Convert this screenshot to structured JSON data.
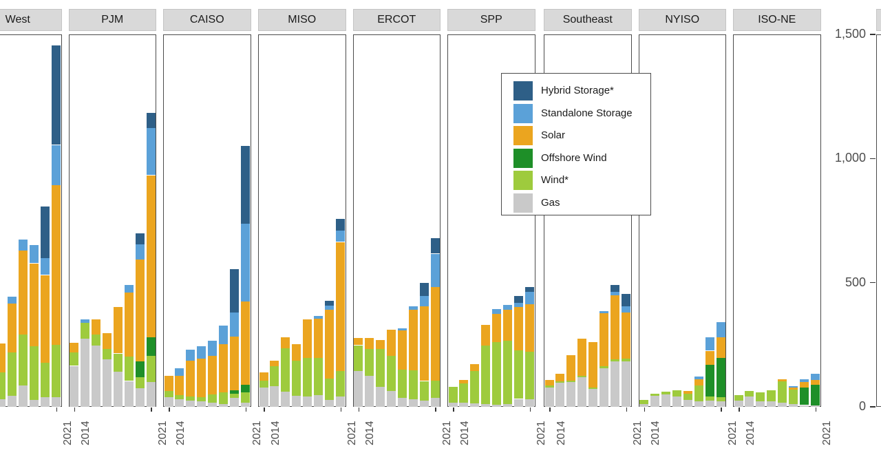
{
  "chart_data": {
    "type": "bar",
    "stacked": true,
    "title": "",
    "xlabel": "",
    "ylabel": "",
    "ylim": [
      0,
      1500
    ],
    "grid": false,
    "legend_position": "overlay-center",
    "x_tick_labels": [
      "2014",
      "2021"
    ],
    "y_axis": {
      "labels": [
        "1,500",
        "1,000",
        "500",
        "0"
      ],
      "values": [
        1500,
        1000,
        500,
        0
      ]
    },
    "series_meta": [
      {
        "key": "gas",
        "label": "Gas",
        "color": "#c9c9c9"
      },
      {
        "key": "wind",
        "label": "Wind*",
        "color": "#9ecb3d"
      },
      {
        "key": "offshore_wind",
        "label": "Offshore Wind",
        "color": "#1e8f28"
      },
      {
        "key": "solar",
        "label": "Solar",
        "color": "#eba51f"
      },
      {
        "key": "standalone_storage",
        "label": "Standalone Storage",
        "color": "#5ba1d8"
      },
      {
        "key": "hybrid_storage",
        "label": "Hybrid Storage*",
        "color": "#2e5f87"
      }
    ],
    "panels": [
      {
        "id": "west",
        "name": "West",
        "years": [
          2016,
          2017,
          2018,
          2019,
          2020,
          2021
        ],
        "values": {
          "gas": [
            32,
            44,
            85,
            28,
            39,
            39
          ],
          "wind": [
            108,
            175,
            205,
            217,
            138,
            211
          ],
          "offshore_wind": [
            0,
            0,
            0,
            0,
            0,
            0
          ],
          "solar": [
            115,
            198,
            339,
            333,
            354,
            642
          ],
          "standalone_storage": [
            0,
            26,
            44,
            74,
            69,
            163
          ],
          "hybrid_storage": [
            0,
            0,
            0,
            0,
            207,
            400
          ]
        }
      },
      {
        "id": "pjm",
        "name": "PJM",
        "years": [
          2014,
          2015,
          2016,
          2017,
          2018,
          2019,
          2020,
          2021
        ],
        "values": {
          "gas": [
            165,
            274,
            248,
            191,
            141,
            104,
            74,
            101
          ],
          "wind": [
            55,
            64,
            44,
            41,
            74,
            98,
            46,
            104
          ],
          "offshore_wind": [
            0,
            0,
            0,
            0,
            0,
            0,
            63,
            74
          ],
          "solar": [
            37,
            0,
            60,
            66,
            186,
            258,
            411,
            654
          ],
          "standalone_storage": [
            0,
            14,
            0,
            0,
            0,
            32,
            60,
            191
          ],
          "hybrid_storage": [
            0,
            0,
            0,
            0,
            0,
            0,
            46,
            60
          ]
        }
      },
      {
        "id": "caiso",
        "name": "CAISO",
        "years": [
          2014,
          2015,
          2016,
          2017,
          2018,
          2019,
          2020,
          2021
        ],
        "values": {
          "gas": [
            38,
            30,
            26,
            21,
            17,
            12,
            35,
            17
          ],
          "wind": [
            25,
            18,
            16,
            18,
            32,
            46,
            18,
            41
          ],
          "offshore_wind": [
            0,
            0,
            0,
            0,
            0,
            0,
            14,
            30
          ],
          "solar": [
            61,
            78,
            143,
            156,
            156,
            195,
            216,
            337
          ],
          "standalone_storage": [
            0,
            29,
            44,
            50,
            60,
            73,
            97,
            313
          ],
          "hybrid_storage": [
            0,
            0,
            0,
            0,
            0,
            0,
            175,
            314
          ]
        }
      },
      {
        "id": "miso",
        "name": "MISO",
        "years": [
          2014,
          2015,
          2016,
          2017,
          2018,
          2019,
          2020,
          2021
        ],
        "values": {
          "gas": [
            78,
            84,
            60,
            44,
            41,
            46,
            28,
            41
          ],
          "wind": [
            28,
            80,
            175,
            143,
            156,
            152,
            87,
            104
          ],
          "offshore_wind": [
            0,
            0,
            0,
            0,
            0,
            0,
            0,
            0
          ],
          "solar": [
            33,
            23,
            44,
            66,
            156,
            156,
            276,
            519
          ],
          "standalone_storage": [
            0,
            0,
            0,
            0,
            0,
            12,
            17,
            46
          ],
          "hybrid_storage": [
            0,
            0,
            0,
            0,
            0,
            0,
            20,
            46
          ]
        }
      },
      {
        "id": "ercot",
        "name": "ERCOT",
        "years": [
          2014,
          2015,
          2016,
          2017,
          2018,
          2019,
          2020,
          2021
        ],
        "values": {
          "gas": [
            145,
            124,
            81,
            63,
            37,
            30,
            26,
            37
          ],
          "wind": [
            103,
            110,
            152,
            142,
            113,
            118,
            78,
            69
          ],
          "offshore_wind": [
            0,
            0,
            0,
            0,
            0,
            0,
            0,
            0
          ],
          "solar": [
            30,
            44,
            35,
            106,
            158,
            243,
            301,
            377
          ],
          "standalone_storage": [
            0,
            0,
            0,
            0,
            9,
            14,
            41,
            134
          ],
          "hybrid_storage": [
            0,
            0,
            0,
            0,
            0,
            0,
            53,
            63
          ]
        }
      },
      {
        "id": "spp",
        "name": "SPP",
        "years": [
          2014,
          2015,
          2016,
          2017,
          2018,
          2019,
          2020,
          2021
        ],
        "values": {
          "gas": [
            17,
            17,
            14,
            12,
            9,
            10,
            32,
            30
          ],
          "wind": [
            64,
            78,
            129,
            234,
            253,
            257,
            196,
            193
          ],
          "offshore_wind": [
            0,
            0,
            0,
            0,
            0,
            0,
            0,
            0
          ],
          "solar": [
            0,
            14,
            28,
            83,
            113,
            123,
            175,
            191
          ],
          "standalone_storage": [
            0,
            0,
            0,
            0,
            18,
            21,
            16,
            48
          ],
          "hybrid_storage": [
            0,
            0,
            0,
            0,
            0,
            0,
            28,
            20
          ]
        }
      },
      {
        "id": "southeast",
        "name": "Southeast",
        "years": [
          2014,
          2015,
          2016,
          2017,
          2018,
          2019,
          2020,
          2021
        ],
        "values": {
          "gas": [
            78,
            97,
            99,
            118,
            72,
            156,
            182,
            184
          ],
          "wind": [
            7,
            7,
            6,
            6,
            6,
            7,
            9,
            9
          ],
          "offshore_wind": [
            0,
            0,
            0,
            0,
            0,
            0,
            0,
            0
          ],
          "solar": [
            23,
            29,
            104,
            150,
            182,
            214,
            258,
            188
          ],
          "standalone_storage": [
            0,
            0,
            0,
            0,
            0,
            8,
            15,
            24
          ],
          "hybrid_storage": [
            0,
            0,
            0,
            0,
            0,
            0,
            28,
            50
          ]
        }
      },
      {
        "id": "nyiso",
        "name": "NYISO",
        "years": [
          2014,
          2015,
          2016,
          2017,
          2018,
          2019,
          2020,
          2021
        ],
        "values": {
          "gas": [
            12,
            44,
            49,
            41,
            28,
            23,
            26,
            23
          ],
          "wind": [
            17,
            9,
            11,
            26,
            25,
            63,
            16,
            15
          ],
          "offshore_wind": [
            0,
            0,
            0,
            0,
            0,
            0,
            126,
            158
          ],
          "solar": [
            0,
            0,
            0,
            0,
            11,
            25,
            58,
            85
          ],
          "standalone_storage": [
            0,
            0,
            0,
            0,
            0,
            12,
            55,
            60
          ],
          "hybrid_storage": [
            0,
            0,
            0,
            0,
            0,
            0,
            0,
            0
          ]
        }
      },
      {
        "id": "iso-ne",
        "name": "ISO-NE",
        "years": [
          2014,
          2015,
          2016,
          2017,
          2018,
          2019,
          2020,
          2021
        ],
        "values": {
          "gas": [
            26,
            41,
            23,
            21,
            17,
            12,
            7,
            5
          ],
          "wind": [
            20,
            23,
            35,
            46,
            85,
            57,
            0,
            0
          ],
          "offshore_wind": [
            0,
            0,
            0,
            0,
            0,
            0,
            71,
            83
          ],
          "solar": [
            0,
            0,
            0,
            0,
            8,
            9,
            21,
            21
          ],
          "standalone_storage": [
            0,
            0,
            0,
            0,
            0,
            6,
            11,
            23
          ],
          "hybrid_storage": [
            0,
            0,
            0,
            0,
            0,
            0,
            0,
            0
          ]
        }
      },
      {
        "id": "cut-right",
        "name": "",
        "years": [],
        "values": {}
      }
    ]
  }
}
